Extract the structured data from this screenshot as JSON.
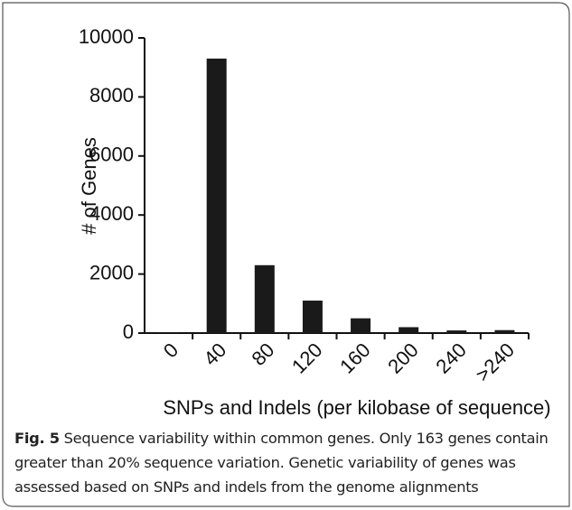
{
  "chart_data": {
    "type": "bar",
    "categories": [
      "0",
      "40",
      "80",
      "120",
      "160",
      "200",
      "240",
      ">240"
    ],
    "values": [
      30,
      9300,
      2300,
      1100,
      500,
      200,
      90,
      100
    ],
    "color": "#1a1a1a",
    "ylim": [
      0,
      10000
    ],
    "yticks": [
      0,
      2000,
      4000,
      6000,
      8000,
      10000
    ],
    "y_label": "# of Genes",
    "x_label": "SNPs and Indels (per kilobase of sequence)",
    "grid": false
  },
  "caption": {
    "label": "Fig. 5",
    "text": "Sequence variability within common genes. Only 163 genes contain greater than 20% sequence variation. Genetic variability of genes was assessed based on SNPs and indels from the genome alignments"
  }
}
